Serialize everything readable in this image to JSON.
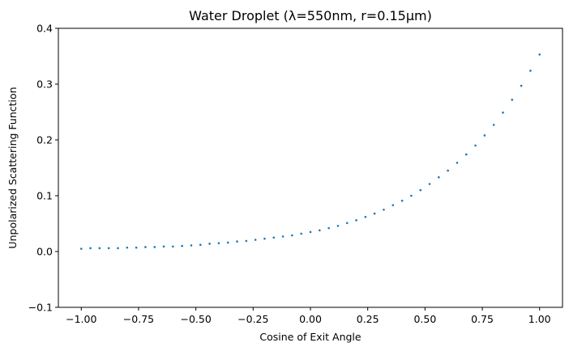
{
  "chart_data": {
    "type": "scatter",
    "title": "Water Droplet (λ=550nm, r=0.15μm)",
    "xlabel": "Cosine of Exit Angle",
    "ylabel": "Unpolarized Scattering Function",
    "xlim": [
      -1.1,
      1.1
    ],
    "ylim": [
      -0.1,
      0.4
    ],
    "xticks": [
      -1.0,
      -0.75,
      -0.5,
      -0.25,
      0.0,
      0.25,
      0.5,
      0.75,
      1.0
    ],
    "xtick_labels": [
      "−1.00",
      "−0.75",
      "−0.50",
      "−0.25",
      "0.00",
      "0.25",
      "0.50",
      "0.75",
      "1.00"
    ],
    "yticks": [
      -0.1,
      0.0,
      0.1,
      0.2,
      0.3,
      0.4
    ],
    "ytick_labels": [
      "−0.1",
      "0.0",
      "0.1",
      "0.2",
      "0.3",
      "0.4"
    ],
    "grid": false,
    "marker_color": "#1f77b4",
    "series": [
      {
        "x": [
          -1.0,
          -0.96,
          -0.92,
          -0.88,
          -0.84,
          -0.8,
          -0.76,
          -0.72,
          -0.68,
          -0.64,
          -0.6,
          -0.56,
          -0.52,
          -0.48,
          -0.44,
          -0.4,
          -0.36,
          -0.32,
          -0.28,
          -0.24,
          -0.2,
          -0.16,
          -0.12,
          -0.08,
          -0.04,
          0.0,
          0.04,
          0.08,
          0.12,
          0.16,
          0.2,
          0.24,
          0.28,
          0.32,
          0.36,
          0.4,
          0.44,
          0.48,
          0.52,
          0.56,
          0.6,
          0.64,
          0.68,
          0.72,
          0.76,
          0.8,
          0.84,
          0.88,
          0.92,
          0.96,
          1.0
        ],
        "values": [
          0.005,
          0.006,
          0.006,
          0.006,
          0.006,
          0.007,
          0.007,
          0.008,
          0.008,
          0.009,
          0.009,
          0.01,
          0.011,
          0.012,
          0.014,
          0.015,
          0.016,
          0.018,
          0.019,
          0.021,
          0.023,
          0.025,
          0.027,
          0.029,
          0.032,
          0.035,
          0.038,
          0.042,
          0.046,
          0.051,
          0.056,
          0.062,
          0.068,
          0.075,
          0.083,
          0.091,
          0.1,
          0.11,
          0.121,
          0.133,
          0.145,
          0.159,
          0.174,
          0.19,
          0.208,
          0.227,
          0.249,
          0.272,
          0.297,
          0.324,
          0.353
        ]
      }
    ]
  }
}
